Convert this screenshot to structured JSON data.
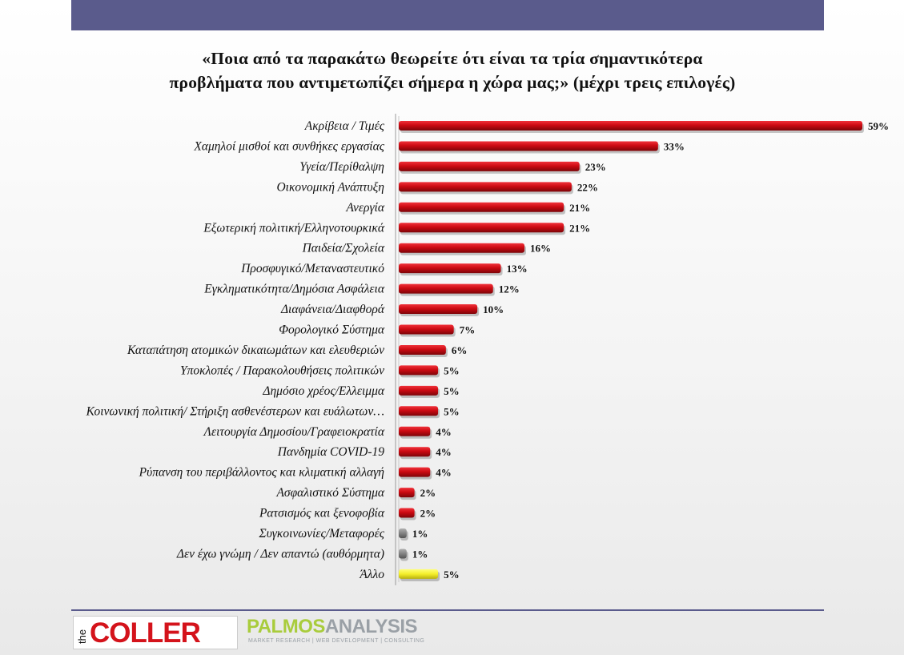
{
  "title": {
    "line1": "«Ποια από τα παρακάτω θεωρείτε ότι είναι τα τρία σημαντικότερα",
    "line2": "προβλήματα που αντιμετωπίζει σήμερα η χώρα μας;» (μέχρι τρεις επιλογές)"
  },
  "colors": {
    "red_bar": "#cc0a12",
    "gray_bar": "#8a8a8a",
    "yellow_bar": "#f4ee2a",
    "band": "#5a5b8c"
  },
  "chart_data": {
    "type": "bar",
    "orientation": "horizontal",
    "value_unit": "%",
    "categories": [
      "Ακρίβεια / Τιμές",
      "Χαμηλοί μισθοί και συνθήκες εργασίας",
      "Υγεία/Περίθαλψη",
      "Οικονομική Ανάπτυξη",
      "Ανεργία",
      "Εξωτερική πολιτική/Ελληνοτουρκικά",
      "Παιδεία/Σχολεία",
      "Προσφυγικό/Μεταναστευτικό",
      "Εγκληματικότητα/Δημόσια Ασφάλεια",
      "Διαφάνεια/Διαφθορά",
      "Φορολογικό Σύστημα",
      "Καταπάτηση ατομικών δικαιωμάτων και ελευθεριών",
      "Υποκλοπές / Παρακολουθήσεις πολιτικών",
      "Δημόσιο χρέος/Ελλειμμα",
      "Κοινωνική πολιτική/ Στήριξη ασθενέστερων και ευάλωτων…",
      "Λειτουργία Δημοσίου/Γραφειοκρατία",
      "Πανδημία COVID-19",
      "Ρύπανση του περιβάλλοντος και κλιματική αλλαγή",
      "Ασφαλιστικό Σύστημα",
      "Ρατσισμός και ξενοφοβία",
      "Συγκοινωνίες/Μεταφορές",
      "Δεν έχω γνώμη / Δεν απαντώ (αυθόρμητα)",
      "Άλλο"
    ],
    "values": [
      59,
      33,
      23,
      22,
      21,
      21,
      16,
      13,
      12,
      10,
      7,
      6,
      5,
      5,
      5,
      4,
      4,
      4,
      2,
      2,
      1,
      1,
      5
    ],
    "value_labels": [
      "59%",
      "33%",
      "23%",
      "22%",
      "21%",
      "21%",
      "16%",
      "13%",
      "12%",
      "10%",
      "7%",
      "6%",
      "5%",
      "5%",
      "5%",
      "4%",
      "4%",
      "4%",
      "2%",
      "2%",
      "1%",
      "1%",
      "5%"
    ],
    "bar_colors": [
      "red",
      "red",
      "red",
      "red",
      "red",
      "red",
      "red",
      "red",
      "red",
      "red",
      "red",
      "red",
      "red",
      "red",
      "red",
      "red",
      "red",
      "red",
      "red",
      "red",
      "gray",
      "gray",
      "yellow"
    ],
    "xlim": [
      0,
      59
    ],
    "grid": false,
    "legend": "none"
  },
  "logos": {
    "coller_small": "the",
    "coller_word": "COLLER",
    "palmos_part1": "PALMOS",
    "palmos_part2": "ANALYSIS",
    "palmos_sub": "MARKET RESEARCH | WEB DEVELOPMENT | CONSULTING"
  }
}
